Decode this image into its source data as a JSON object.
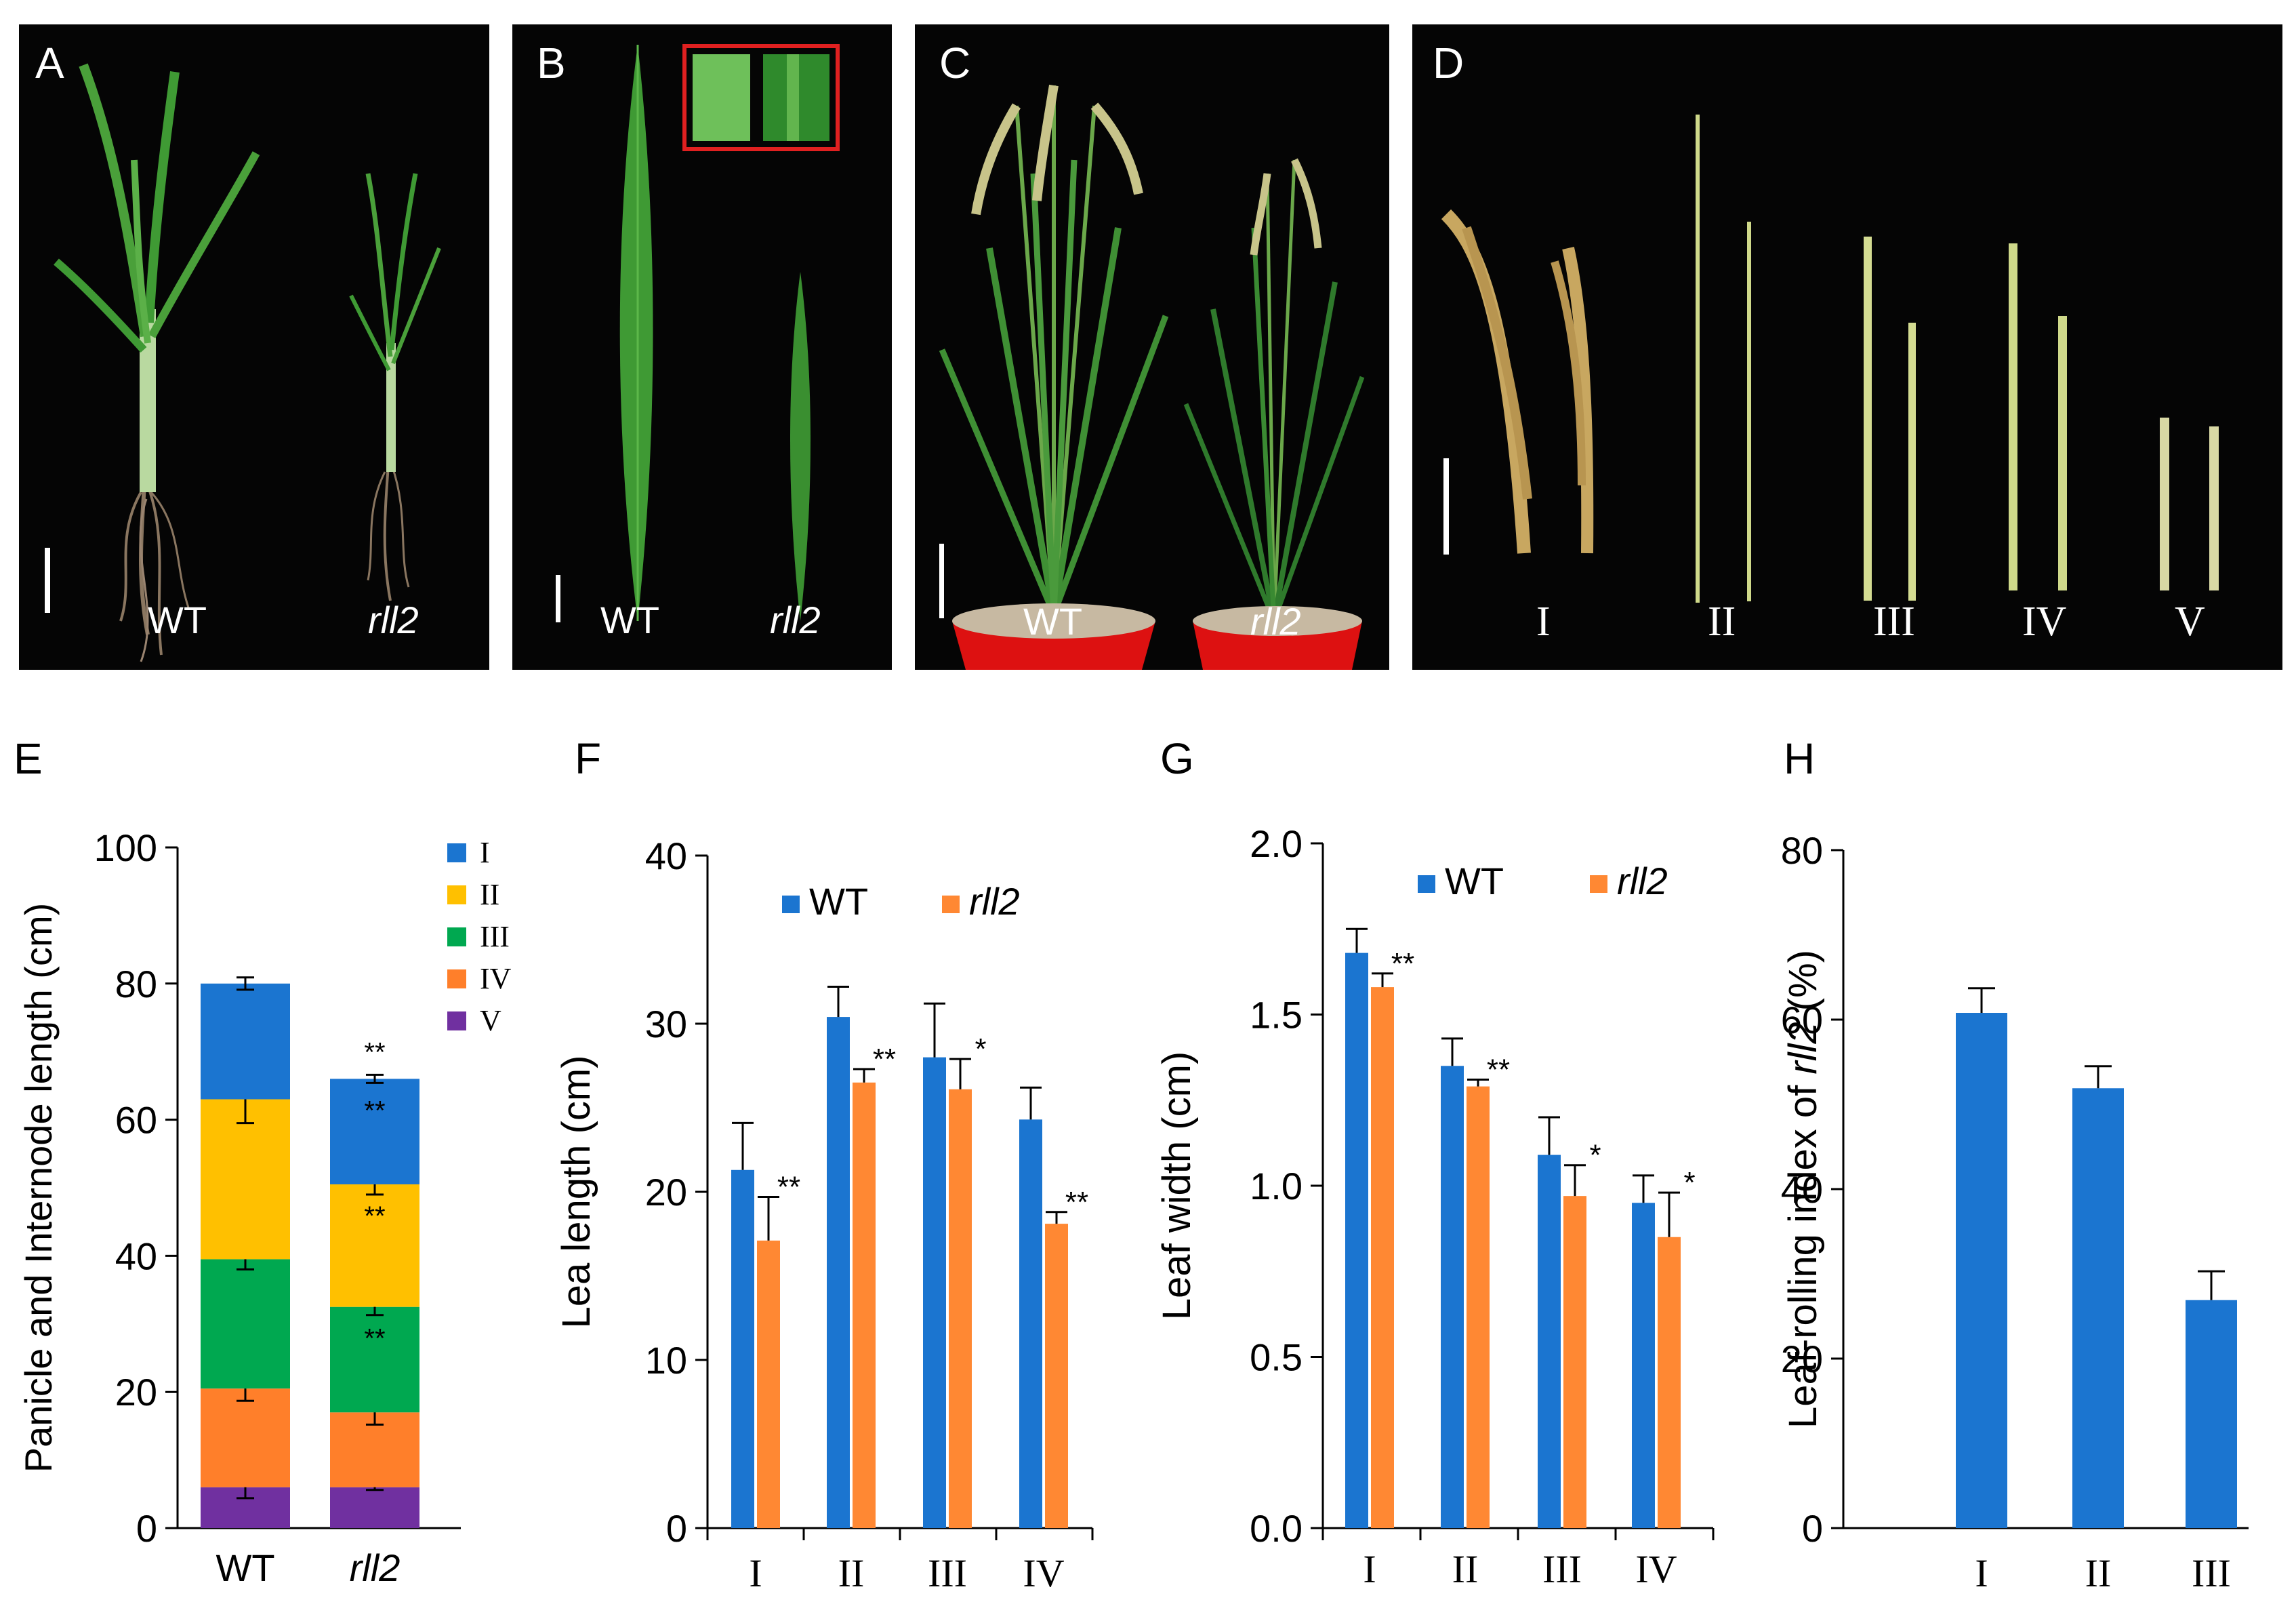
{
  "colors": {
    "wt": "#1b75d0",
    "rll2": "#ff8833",
    "seg_I": "#1b75d0",
    "seg_II": "#ffc000",
    "seg_III": "#00a850",
    "seg_IV": "#ff7f2a",
    "seg_V": "#7030a0",
    "photo_bg": "#050505",
    "scale_box": "#e02020",
    "pot": "#dd1111",
    "leaf": "#3f9a34",
    "stem": "#cfd98a",
    "panicle": "#c8a760"
  },
  "photos": {
    "A": {
      "letter": "A",
      "wt_label": "WT",
      "mut_label": "rll2"
    },
    "B": {
      "letter": "B",
      "wt_label": "WT",
      "mut_label": "rll2"
    },
    "C": {
      "letter": "C",
      "wt_label": "WT",
      "mut_label": "rll2"
    },
    "D": {
      "letter": "D",
      "labels": [
        "I",
        "II",
        "III",
        "IV",
        "V"
      ]
    }
  },
  "chart_data": [
    {
      "panel": "E",
      "type": "bar",
      "stacked": true,
      "categories": [
        "WT",
        "rll2"
      ],
      "ylabel": "Panicle and Internode length (cm)",
      "ylim": [
        0,
        100
      ],
      "yticks": [
        0,
        20,
        40,
        60,
        80,
        100
      ],
      "legend_position": "top-right",
      "series": [
        {
          "name": "V",
          "values": [
            6,
            6
          ],
          "errors": [
            1.6,
            0.4
          ],
          "sig": [
            "",
            ""
          ]
        },
        {
          "name": "IV",
          "values": [
            14.5,
            11
          ],
          "errors": [
            1.8,
            1.8
          ],
          "sig": [
            "",
            ""
          ]
        },
        {
          "name": "III",
          "values": [
            19,
            15.5
          ],
          "errors": [
            1.5,
            1.2
          ],
          "sig": [
            "",
            "**"
          ]
        },
        {
          "name": "II",
          "values": [
            23.5,
            18
          ],
          "errors": [
            3.5,
            1.5
          ],
          "sig": [
            "",
            "**"
          ]
        },
        {
          "name": "I",
          "values": [
            17,
            15.5
          ],
          "errors": [
            0.9,
            0.6
          ],
          "sig": [
            "",
            "**"
          ]
        }
      ],
      "total_sig": [
        "",
        "**"
      ]
    },
    {
      "panel": "F",
      "type": "bar",
      "categories": [
        "I",
        "II",
        "III",
        "IV"
      ],
      "ylabel": "Lea length (cm)",
      "ylim": [
        0,
        40
      ],
      "yticks": [
        0,
        10,
        20,
        30,
        40
      ],
      "legend_position": "top",
      "series": [
        {
          "name": "WT",
          "values": [
            21.3,
            30.4,
            28,
            24.3
          ],
          "errors": [
            2.8,
            1.8,
            3.2,
            1.9
          ]
        },
        {
          "name": "rll2",
          "values": [
            17.1,
            26.5,
            26.1,
            18.1
          ],
          "errors": [
            2.6,
            0.8,
            1.8,
            0.7
          ]
        }
      ],
      "significance": [
        "**",
        "**",
        "*",
        "**"
      ]
    },
    {
      "panel": "G",
      "type": "bar",
      "categories": [
        "I",
        "II",
        "III",
        "IV"
      ],
      "ylabel": "Leaf width (cm)",
      "ylim": [
        0,
        2
      ],
      "yticks": [
        "0.0",
        "0.5",
        "1.0",
        "1.5",
        "2.0"
      ],
      "legend_position": "top",
      "series": [
        {
          "name": "WT",
          "values": [
            1.68,
            1.35,
            1.09,
            0.95
          ],
          "errors": [
            0.07,
            0.08,
            0.11,
            0.08
          ]
        },
        {
          "name": "rll2",
          "values": [
            1.58,
            1.29,
            0.97,
            0.85
          ],
          "errors": [
            0.04,
            0.02,
            0.09,
            0.13
          ]
        }
      ],
      "significance": [
        "**",
        "**",
        "*",
        "*"
      ]
    },
    {
      "panel": "H",
      "type": "bar",
      "categories": [
        "I",
        "II",
        "III"
      ],
      "ylabel_prefix": "Leaf-rolling index of ",
      "ylabel_italic": "rll2",
      "ylabel_suffix": " (%)",
      "ylim": [
        0,
        80
      ],
      "yticks": [
        0,
        20,
        40,
        60,
        80
      ],
      "series": [
        {
          "name": "rll2",
          "values": [
            60.8,
            51.9,
            26.9
          ],
          "errors": [
            2.9,
            2.6,
            3.4
          ]
        }
      ]
    }
  ]
}
